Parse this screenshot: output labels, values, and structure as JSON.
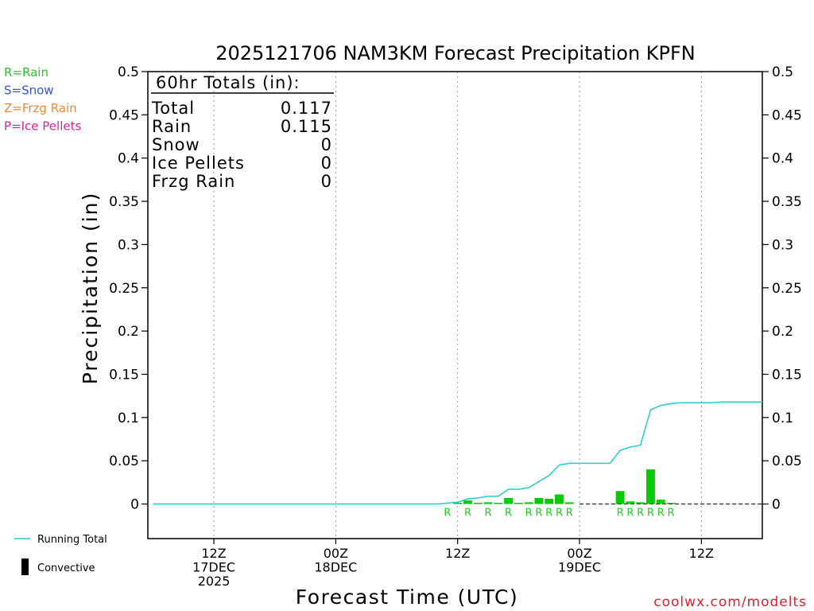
{
  "chart_data": {
    "type": "bar",
    "title": "2025121706 NAM3KM Forecast Precipitation KPFN",
    "xlabel": "Forecast Time (UTC)",
    "ylabel": "Precipitation (in)",
    "ylim": [
      -0.04,
      0.5
    ],
    "yticks": [
      "0.5",
      "0.45",
      "0.4",
      "0.35",
      "0.3",
      "0.25",
      "0.2",
      "0.15",
      "0.1",
      "0.05",
      "0"
    ],
    "yticks_values": [
      0.5,
      0.45,
      0.4,
      0.35,
      0.3,
      0.25,
      0.2,
      0.15,
      0.1,
      0.05,
      0
    ],
    "xlim_hours": [
      -0.5,
      60
    ],
    "xticks": [
      {
        "hour": 6,
        "lines": [
          "12Z",
          "17DEC",
          "2025"
        ]
      },
      {
        "hour": 18,
        "lines": [
          "00Z",
          "18DEC"
        ]
      },
      {
        "hour": 30,
        "lines": [
          "12Z"
        ]
      },
      {
        "hour": 42,
        "lines": [
          "00Z",
          "19DEC"
        ]
      },
      {
        "hour": 54,
        "lines": [
          "12Z"
        ]
      }
    ],
    "ptype_legend": [
      {
        "label": "R=Rain",
        "color": "#22cc22"
      },
      {
        "label": "S=Snow",
        "color": "#3355dd"
      },
      {
        "label": "Z=Frzg Rain",
        "color": "#ee8833"
      },
      {
        "label": "P=Ice Pellets",
        "color": "#dd2299"
      }
    ],
    "totals": {
      "header": "60hr Totals (in):",
      "rows": [
        {
          "label": "Total",
          "value": "0.117"
        },
        {
          "label": "Rain",
          "value": "0.115"
        },
        {
          "label": "Snow",
          "value": "0"
        },
        {
          "label": "Ice Pellets",
          "value": "0"
        },
        {
          "label": "Frzg Rain",
          "value": "0"
        }
      ]
    },
    "series": [
      {
        "name": "Hourly Precipitation",
        "color": "#00cc00",
        "bars": [
          {
            "hour": 30,
            "value": 0.001
          },
          {
            "hour": 31,
            "value": 0.004
          },
          {
            "hour": 32,
            "value": 0.001
          },
          {
            "hour": 33,
            "value": 0.002
          },
          {
            "hour": 34,
            "value": 0.0005
          },
          {
            "hour": 35,
            "value": 0.007
          },
          {
            "hour": 36,
            "value": 0.0005
          },
          {
            "hour": 37,
            "value": 0.002
          },
          {
            "hour": 38,
            "value": 0.007
          },
          {
            "hour": 39,
            "value": 0.006
          },
          {
            "hour": 40,
            "value": 0.011
          },
          {
            "hour": 41,
            "value": 0.002
          },
          {
            "hour": 46,
            "value": 0.015
          },
          {
            "hour": 47,
            "value": 0.003
          },
          {
            "hour": 48,
            "value": 0.002
          },
          {
            "hour": 49,
            "value": 0.04
          },
          {
            "hour": 50,
            "value": 0.005
          },
          {
            "hour": 51,
            "value": 0.001
          }
        ]
      },
      {
        "name": "Running Total",
        "color": "#22cccc",
        "points": [
          [
            0,
            0
          ],
          [
            28,
            0
          ],
          [
            29,
            0.001
          ],
          [
            30,
            0.002
          ],
          [
            31,
            0.006
          ],
          [
            32,
            0.007
          ],
          [
            33,
            0.009
          ],
          [
            34,
            0.009
          ],
          [
            35,
            0.017
          ],
          [
            36,
            0.017
          ],
          [
            37,
            0.019
          ],
          [
            38,
            0.026
          ],
          [
            39,
            0.033
          ],
          [
            40,
            0.045
          ],
          [
            41,
            0.047
          ],
          [
            42,
            0.047
          ],
          [
            43,
            0.047
          ],
          [
            44,
            0.047
          ],
          [
            45,
            0.047
          ],
          [
            46,
            0.062
          ],
          [
            47,
            0.066
          ],
          [
            48,
            0.068
          ],
          [
            49,
            0.109
          ],
          [
            50,
            0.114
          ],
          [
            51,
            0.116
          ],
          [
            52,
            0.117
          ],
          [
            55,
            0.117
          ],
          [
            56,
            0.118
          ],
          [
            60,
            0.118
          ]
        ]
      }
    ],
    "ptype_markers": [
      {
        "hour": 29,
        "label": "R"
      },
      {
        "hour": 31,
        "label": "R"
      },
      {
        "hour": 33,
        "label": "R"
      },
      {
        "hour": 35,
        "label": "R"
      },
      {
        "hour": 37,
        "label": "R"
      },
      {
        "hour": 38,
        "label": "R"
      },
      {
        "hour": 39,
        "label": "R"
      },
      {
        "hour": 40,
        "label": "R"
      },
      {
        "hour": 41,
        "label": "R"
      },
      {
        "hour": 46,
        "label": "R"
      },
      {
        "hour": 47,
        "label": "R"
      },
      {
        "hour": 48,
        "label": "R"
      },
      {
        "hour": 49,
        "label": "R"
      },
      {
        "hour": 50,
        "label": "R"
      },
      {
        "hour": 51,
        "label": "R"
      }
    ],
    "line_legend": [
      {
        "label": "Running Total",
        "color": "#22cccc"
      },
      {
        "label": "Convective",
        "color": "#000000"
      }
    ]
  },
  "credit": "coolwx.com/modelts"
}
